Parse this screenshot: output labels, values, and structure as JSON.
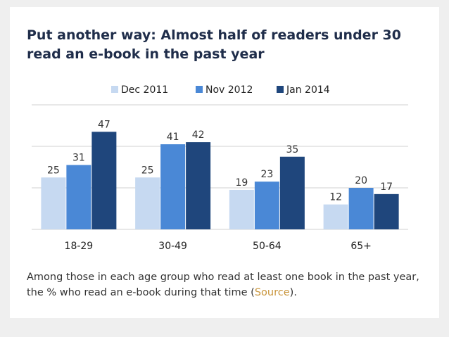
{
  "chart_data": {
    "type": "bar",
    "title": "Put another way: Almost half of readers under 30 read an e-book in the past year",
    "categories": [
      "18-29",
      "30-49",
      "50-64",
      "65+"
    ],
    "series": [
      {
        "name": "Dec 2011",
        "color": "#c6d9f1",
        "values": [
          25,
          25,
          19,
          12
        ]
      },
      {
        "name": "Nov 2012",
        "color": "#4a88d6",
        "values": [
          31,
          41,
          23,
          20
        ]
      },
      {
        "name": "Jan 2014",
        "color": "#1f467c",
        "values": [
          47,
          42,
          35,
          17
        ]
      }
    ],
    "ylim": [
      0,
      60
    ],
    "yticks": [
      0,
      20,
      40,
      60
    ],
    "grid": true,
    "legend": "top",
    "caption": {
      "before": "Among those in each age group who read at least one book in the past year, the % who read an e-book during that time (",
      "link": "Source",
      "after": ")."
    }
  }
}
